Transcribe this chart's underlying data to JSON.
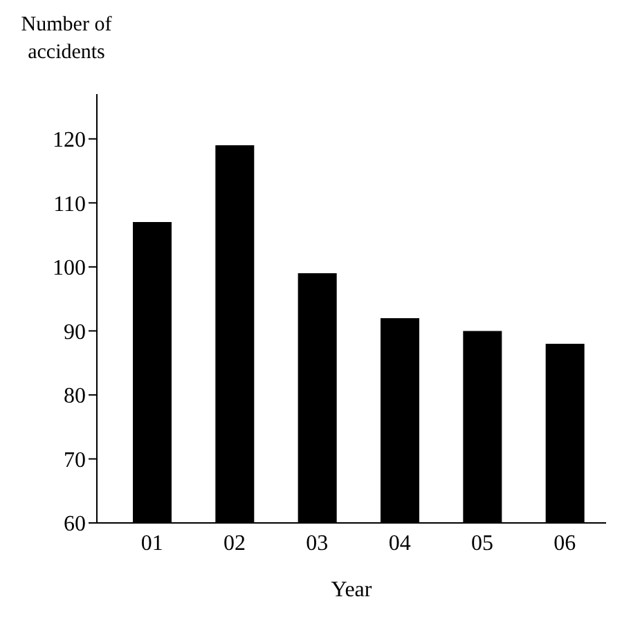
{
  "chart_data": {
    "type": "bar",
    "ylabel": "Number of accidents",
    "xlabel": "Year",
    "categories": [
      "01",
      "02",
      "03",
      "04",
      "05",
      "06"
    ],
    "values": [
      107,
      119,
      99,
      92,
      90,
      88
    ],
    "color": "#000000",
    "ylim": [
      60,
      127
    ],
    "yticks": [
      60,
      70,
      80,
      90,
      100,
      110,
      120
    ],
    "grid": false
  }
}
